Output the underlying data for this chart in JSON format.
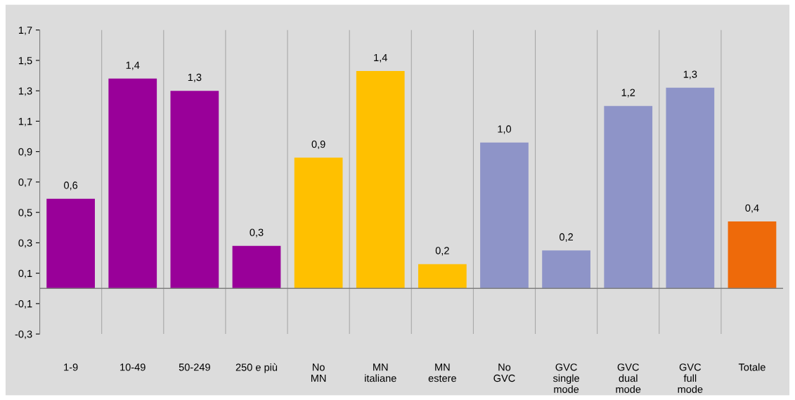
{
  "chart_data": {
    "type": "bar",
    "categories": [
      "1-9",
      "10-49",
      "50-249",
      "250 e più",
      "No\nMN",
      "MN\nitaliane",
      "MN\nestere",
      "No\nGVC",
      "GVC\nsingle\nmode",
      "GVC\ndual\nmode",
      "GVC\nfull\nmode",
      "Totale"
    ],
    "values": [
      0.59,
      1.38,
      1.3,
      0.28,
      0.86,
      1.43,
      0.16,
      0.96,
      0.25,
      1.2,
      1.32,
      0.44
    ],
    "colors": [
      "#990099",
      "#990099",
      "#990099",
      "#990099",
      "#ffc000",
      "#ffc000",
      "#ffc000",
      "#8e94c8",
      "#8e94c8",
      "#8e94c8",
      "#8e94c8",
      "#ee6a0a"
    ],
    "value_labels": [
      "0,6",
      "1,4",
      "1,3",
      "0,3",
      "0,9",
      "1,4",
      "0,2",
      "1,0",
      "0,2",
      "1,2",
      "1,3",
      "0,4"
    ],
    "ylim": [
      -0.3,
      1.7
    ],
    "yticks": [
      {
        "value": -0.3,
        "label": "-0,3"
      },
      {
        "value": -0.1,
        "label": "-0,1"
      },
      {
        "value": 0.1,
        "label": "0,1"
      },
      {
        "value": 0.3,
        "label": "0,3"
      },
      {
        "value": 0.5,
        "label": "0,5"
      },
      {
        "value": 0.7,
        "label": "0,7"
      },
      {
        "value": 0.9,
        "label": "0,9"
      },
      {
        "value": 1.1,
        "label": "1,1"
      },
      {
        "value": 1.3,
        "label": "1,3"
      },
      {
        "value": 1.5,
        "label": "1,5"
      },
      {
        "value": 1.7,
        "label": "1,7"
      }
    ],
    "grid": "x"
  }
}
